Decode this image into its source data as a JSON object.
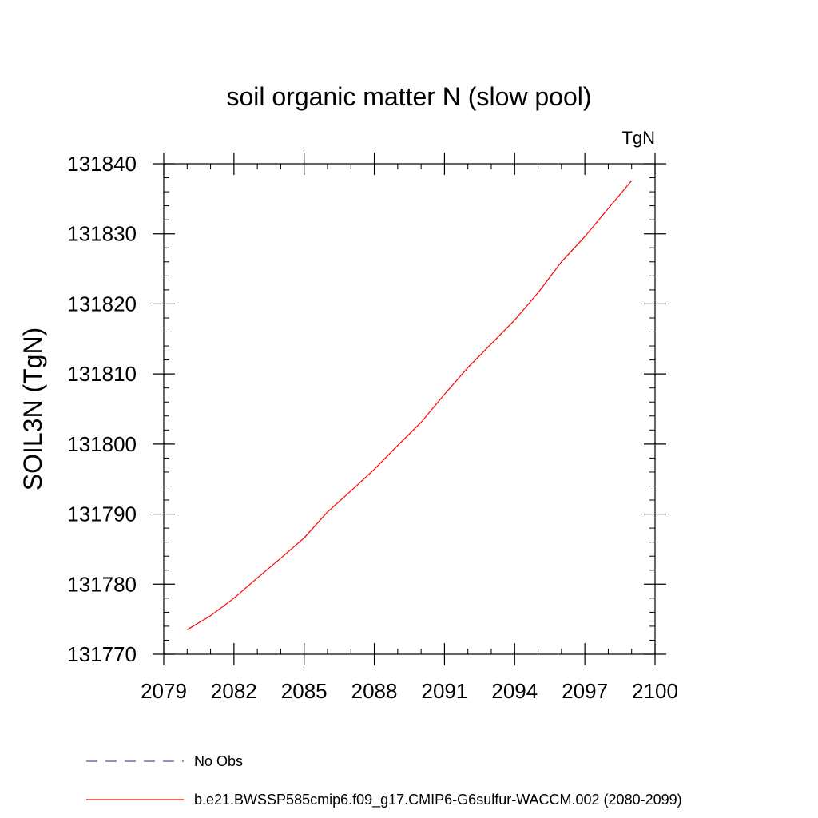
{
  "chart_data": {
    "type": "line",
    "title": "soil organic matter N (slow pool)",
    "units_label": "TgN",
    "xlabel": "",
    "ylabel": "SOIL3N  (TgN)",
    "xlim": [
      2079,
      2100
    ],
    "ylim": [
      131770,
      131840
    ],
    "xticks": [
      2079,
      2082,
      2085,
      2088,
      2091,
      2094,
      2097,
      2100
    ],
    "yticks": [
      131770,
      131780,
      131790,
      131800,
      131810,
      131820,
      131830,
      131840
    ],
    "grid": false,
    "legend_position": "bottom",
    "series": [
      {
        "name": "No Obs",
        "color": "#5a4fa8",
        "dash": "dashed",
        "x": [],
        "y": []
      },
      {
        "name": "b.e21.BWSSP585cmip6.f09_g17.CMIP6-G6sulfur-WACCM.002 (2080-2099)",
        "color": "#ff0000",
        "dash": "solid",
        "x": [
          2080,
          2081,
          2082,
          2083,
          2084,
          2085,
          2086,
          2087,
          2088,
          2089,
          2090,
          2091,
          2092,
          2093,
          2094,
          2095,
          2096,
          2097,
          2098,
          2099
        ],
        "y": [
          131773.5,
          131775.5,
          131778.0,
          131780.9,
          131783.7,
          131786.6,
          131790.3,
          131793.3,
          131796.4,
          131799.8,
          131803.1,
          131807.1,
          131810.9,
          131814.3,
          131817.7,
          131821.6,
          131826.0,
          131829.6,
          131833.6,
          131837.6
        ]
      }
    ]
  }
}
